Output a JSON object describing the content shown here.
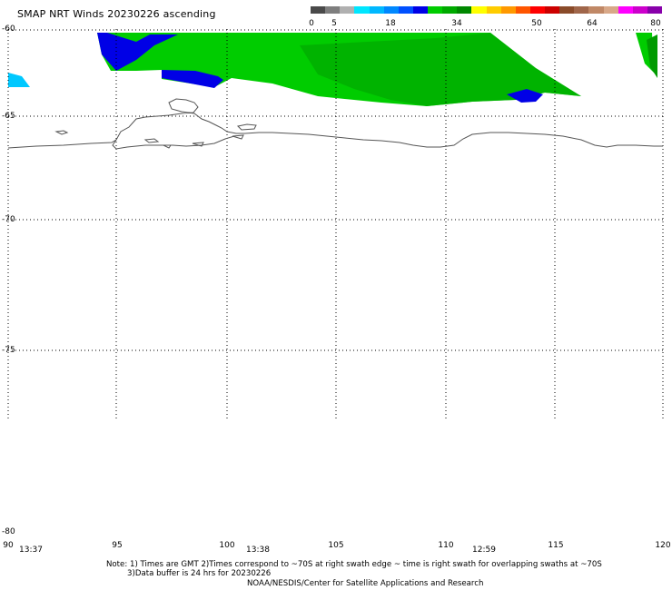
{
  "title": "SMAP NRT Winds 20230226 ascending",
  "colorbar": {
    "ticks": [
      "0",
      "5",
      "18",
      "34",
      "50",
      "64",
      "80"
    ],
    "segments": [
      "#4a4a4a",
      "#7e7e7e",
      "#b0b0b0",
      "#00e6ff",
      "#00b8ff",
      "#0088ff",
      "#0050ff",
      "#0000e6",
      "#00cc00",
      "#00aa00",
      "#008800",
      "#ffff00",
      "#ffcc00",
      "#ff9900",
      "#ff5500",
      "#ff0000",
      "#cc0000",
      "#8a4b2a",
      "#a0664a",
      "#c08866",
      "#d8a888",
      "#ff00ff",
      "#cc00cc",
      "#8800aa"
    ]
  },
  "lat_labels": [
    "-60",
    "-65",
    "-70",
    "-75",
    "-80"
  ],
  "lon_labels": [
    "90",
    "95",
    "100",
    "105",
    "110",
    "115",
    "120"
  ],
  "time_labels": [
    "13:37",
    "13:38",
    "12:59"
  ],
  "notes": {
    "line1": "Note: 1) Times are GMT 2)Times correspond to ~70S at right swath edge ~ time is right swath for overlapping swaths at ~70S",
    "line2": "3)Data buffer is 24 hrs for 20230226",
    "line3": "NOAA/NESDIS/Center for Satellite Applications and Research"
  },
  "wind_colors": {
    "calm_light": "#00c8ff",
    "moderate": "#0000e6",
    "fresh": "#00cc00",
    "fresh_dark": "#009e00"
  }
}
